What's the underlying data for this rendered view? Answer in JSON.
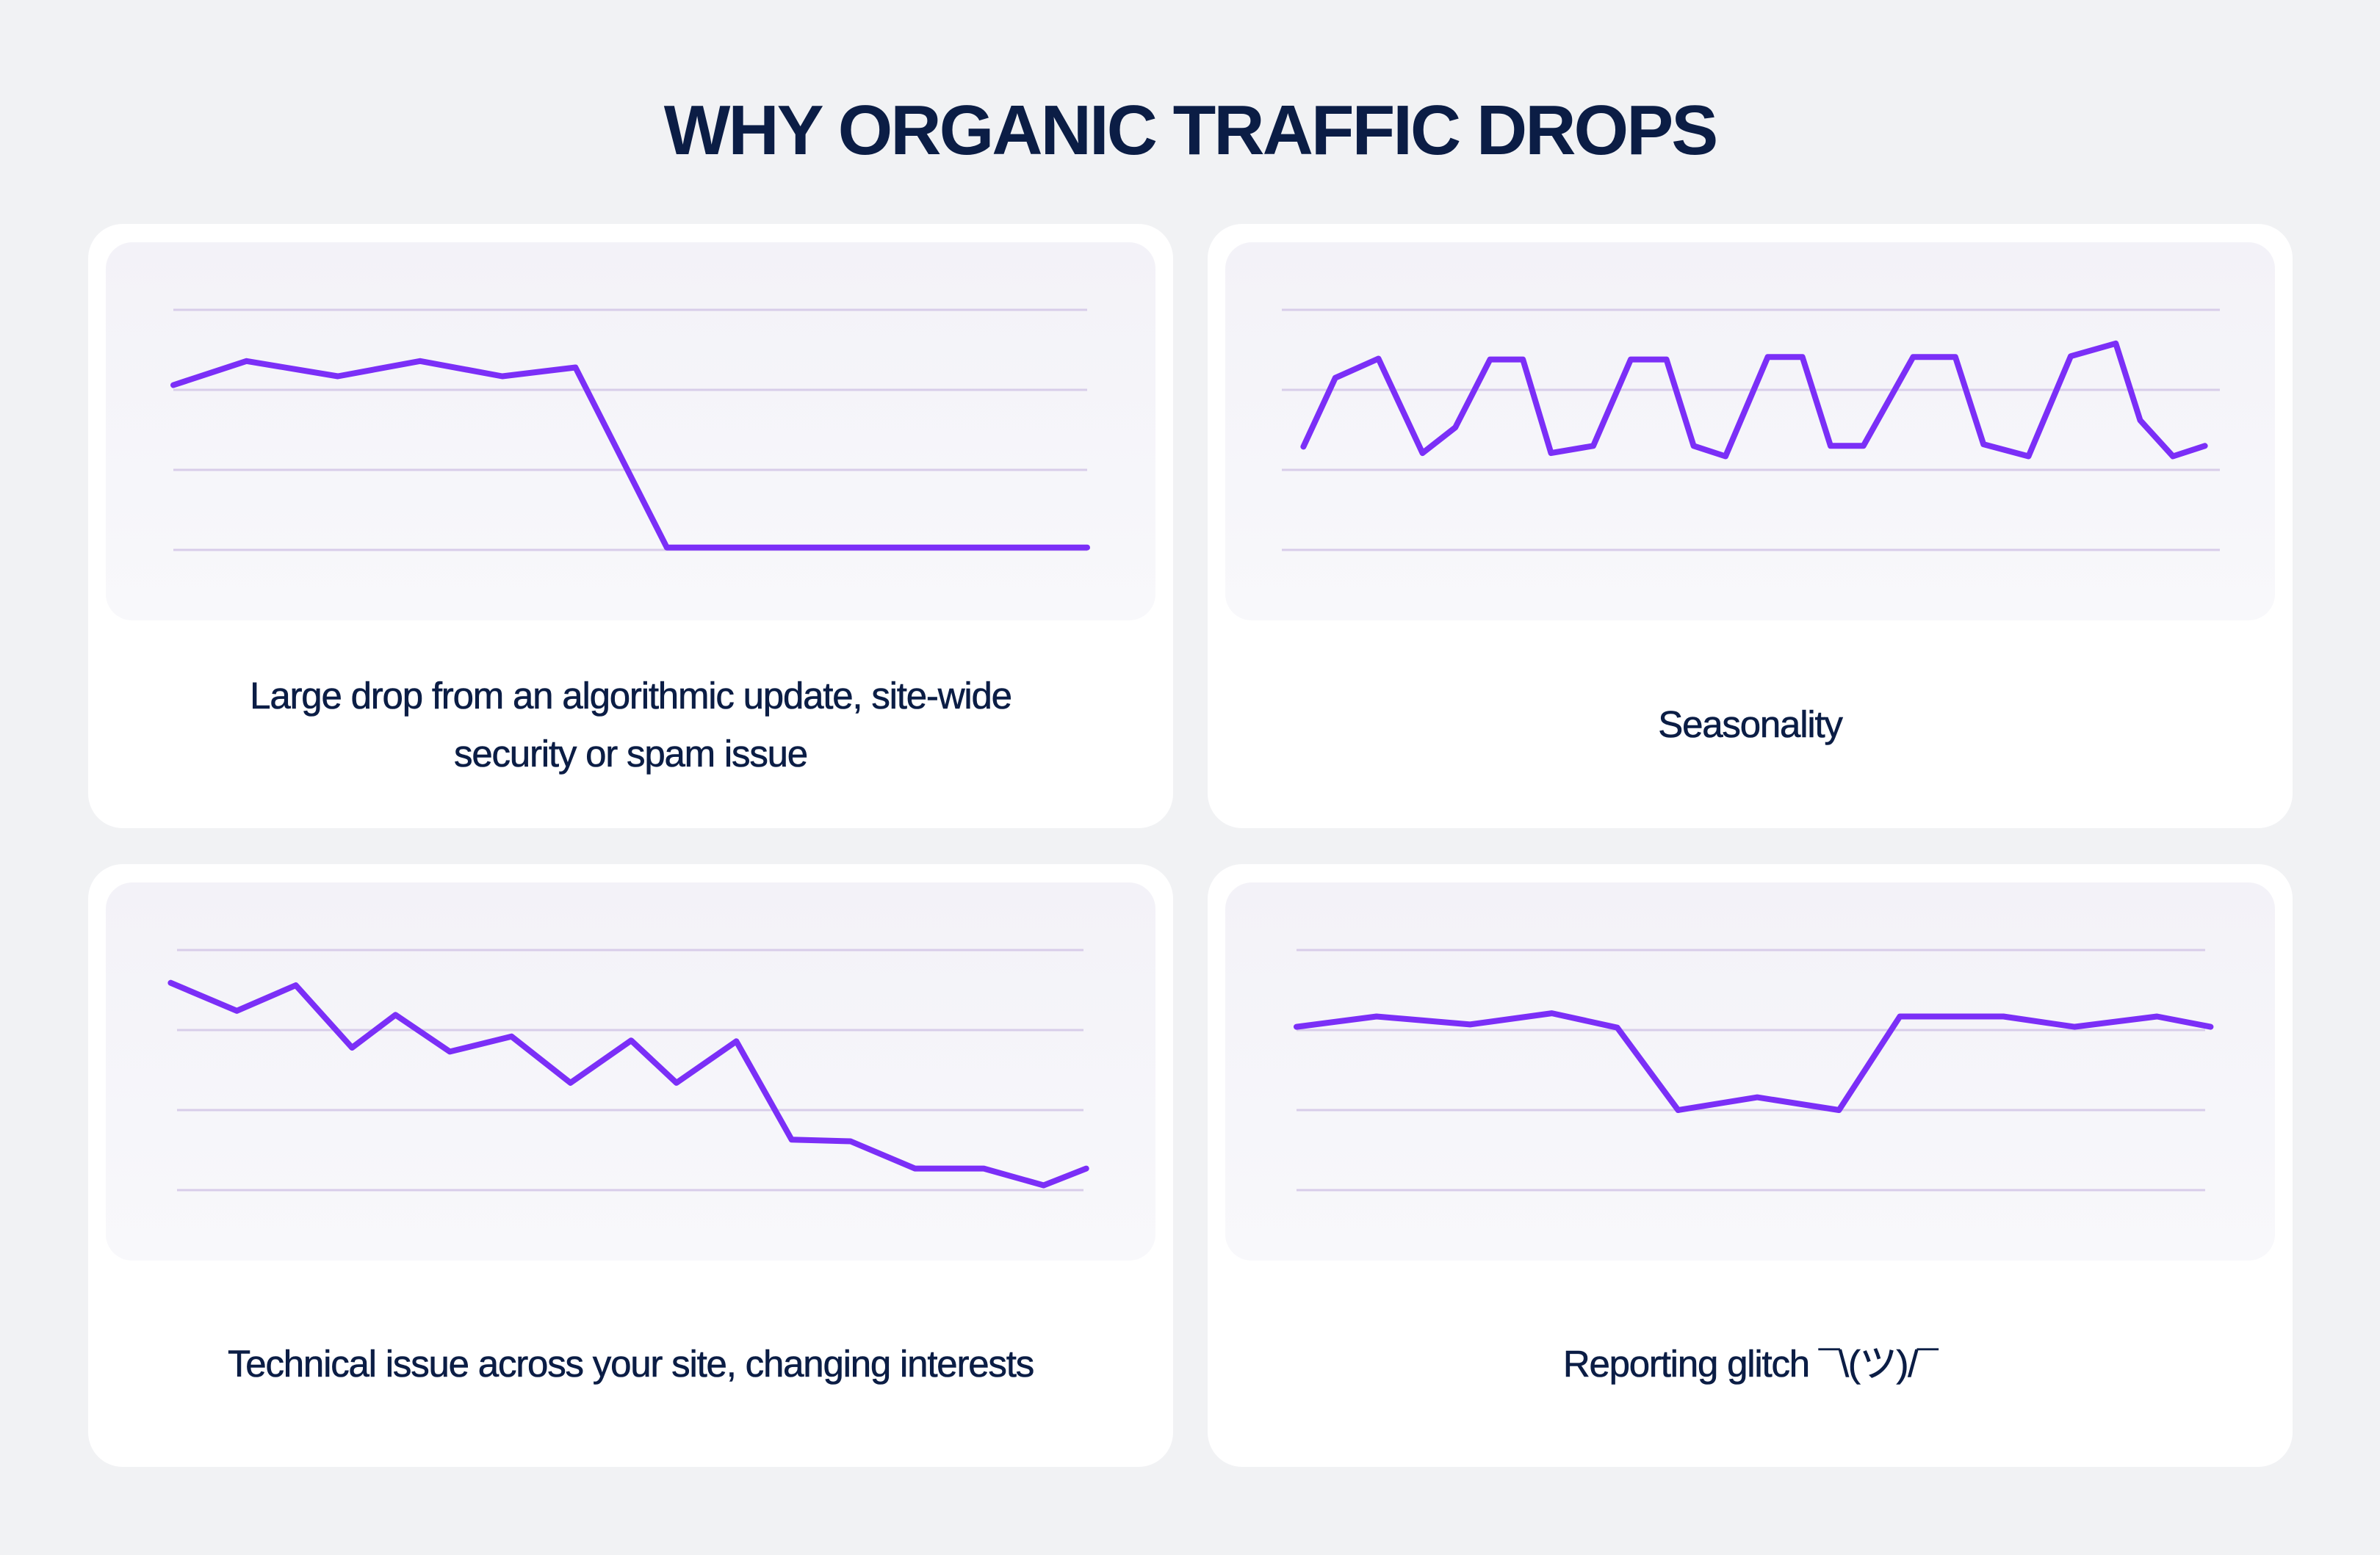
{
  "page": {
    "title": "WHY ORGANIC TRAFFIC DROPS",
    "colors": {
      "background": "#f1f2f4",
      "card": "#ffffff",
      "panel": "#f4f3f8",
      "line": "#7b2ff7",
      "gridline": "#d8cde9",
      "text": "#0b1d45"
    }
  },
  "cards": [
    {
      "caption": "Large drop from an algorithmic update, site-wide security or spam issue"
    },
    {
      "caption": "Seasonality"
    },
    {
      "caption": "Technical issue across your site, changing interests"
    },
    {
      "caption": "Reporting glitch ¯\\(ツ)/¯"
    }
  ],
  "chart_data": [
    {
      "type": "line",
      "title": "Large drop from an algorithmic update, site-wide security or spam issue",
      "xlabel": "",
      "ylabel": "",
      "xlim": [
        0,
        100
      ],
      "ylim": [
        0,
        3
      ],
      "grid": true,
      "gridlines_y": [
        0,
        1,
        2,
        3
      ],
      "axis_labels_shown": false,
      "legend": "none",
      "series": [
        {
          "name": "organic traffic",
          "x": [
            0,
            8,
            18,
            27,
            36,
            44,
            54,
            100
          ],
          "y": [
            2.06,
            2.36,
            2.17,
            2.36,
            2.17,
            2.28,
            0.03,
            0.03
          ]
        }
      ]
    },
    {
      "type": "line",
      "title": "Seasonality",
      "xlabel": "",
      "ylabel": "",
      "xlim": [
        0,
        100
      ],
      "ylim": [
        0,
        3
      ],
      "grid": true,
      "gridlines_y": [
        0,
        1,
        2,
        3
      ],
      "axis_labels_shown": false,
      "legend": "none",
      "series": [
        {
          "name": "organic traffic",
          "x": [
            2.3,
            5.7,
            10.3,
            15.0,
            18.5,
            22.2,
            25.7,
            28.7,
            33.2,
            37.2,
            41.0,
            43.9,
            47.3,
            51.8,
            55.5,
            58.5,
            62.0,
            67.3,
            71.8,
            74.8,
            79.6,
            84.1,
            88.9,
            91.5,
            95.0,
            98.4
          ],
          "y": [
            1.29,
            2.15,
            2.39,
            1.21,
            1.53,
            2.38,
            2.38,
            1.21,
            1.3,
            2.38,
            2.38,
            1.3,
            1.17,
            2.41,
            2.41,
            1.3,
            1.3,
            2.41,
            2.41,
            1.32,
            1.17,
            2.42,
            2.58,
            1.62,
            1.17,
            1.3
          ]
        }
      ]
    },
    {
      "type": "line",
      "title": "Technical issue across your site, changing interests",
      "xlabel": "",
      "ylabel": "",
      "xlim": [
        0,
        100
      ],
      "ylim": [
        0,
        3
      ],
      "grid": true,
      "gridlines_y": [
        0,
        1,
        2,
        3
      ],
      "axis_labels_shown": false,
      "legend": "none",
      "series": [
        {
          "name": "organic traffic",
          "x": [
            -0.7,
            6.6,
            13.1,
            19.3,
            24.1,
            30.1,
            36.9,
            43.4,
            50.1,
            55.1,
            61.7,
            67.8,
            74.3,
            81.4,
            89.0,
            95.6,
            100.3
          ],
          "y": [
            2.59,
            2.24,
            2.56,
            1.78,
            2.19,
            1.73,
            1.92,
            1.34,
            1.87,
            1.34,
            1.86,
            0.63,
            0.61,
            0.27,
            0.27,
            0.06,
            0.27
          ]
        }
      ]
    },
    {
      "type": "line",
      "title": "Reporting glitch ¯\\(ツ)/¯",
      "xlabel": "",
      "ylabel": "",
      "xlim": [
        0,
        100
      ],
      "ylim": [
        0,
        3
      ],
      "grid": true,
      "gridlines_y": [
        0,
        1,
        2,
        3
      ],
      "axis_labels_shown": false,
      "legend": "none",
      "series": [
        {
          "name": "organic traffic",
          "x": [
            0,
            8.8,
            19.1,
            28.1,
            35.3,
            42.0,
            50.7,
            59.7,
            66.4,
            77.8,
            85.6,
            94.7,
            100.6
          ],
          "y": [
            2.04,
            2.17,
            2.07,
            2.21,
            2.03,
            1.0,
            1.16,
            1.0,
            2.17,
            2.17,
            2.04,
            2.17,
            2.04
          ]
        }
      ]
    }
  ]
}
